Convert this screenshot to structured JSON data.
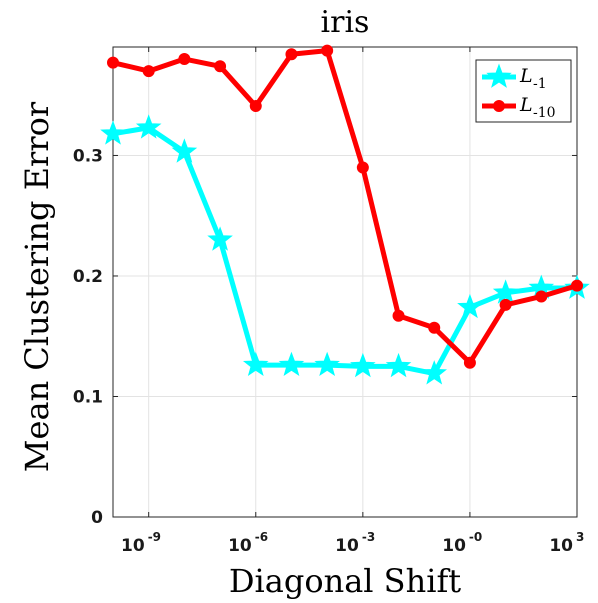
{
  "chart_data": {
    "type": "line",
    "title": "iris",
    "xlabel": "Diagonal Shift",
    "ylabel": "Mean Clustering Error",
    "x_scale": "log",
    "xlim": [
      1e-10,
      1000
    ],
    "ylim": [
      0,
      0.39
    ],
    "x_ticks": [
      {
        "value": 1e-09,
        "base": "10",
        "exp": "-9"
      },
      {
        "value": 1e-06,
        "base": "10",
        "exp": "-6"
      },
      {
        "value": 0.001,
        "base": "10",
        "exp": "-3"
      },
      {
        "value": 1,
        "base": "10",
        "exp": "-0"
      },
      {
        "value": 1000,
        "base": "10",
        "exp": "3"
      }
    ],
    "y_ticks": [
      {
        "value": 0,
        "label": "0"
      },
      {
        "value": 0.1,
        "label": "0.1"
      },
      {
        "value": 0.2,
        "label": "0.2"
      },
      {
        "value": 0.3,
        "label": "0.3"
      }
    ],
    "grid": true,
    "legend_position": "top-right",
    "series": [
      {
        "name": "L",
        "subscript": "-1",
        "color": "#00ffff",
        "marker": "star",
        "x": [
          1e-10,
          1e-09,
          1e-08,
          1e-07,
          1e-06,
          1e-05,
          0.0001,
          0.001,
          0.01,
          0.1,
          1,
          10,
          100,
          1000
        ],
        "values": [
          0.318,
          0.323,
          0.303,
          0.23,
          0.126,
          0.126,
          0.126,
          0.125,
          0.125,
          0.119,
          0.174,
          0.186,
          0.19,
          0.19
        ]
      },
      {
        "name": "L",
        "subscript": "-10",
        "color": "#ff0000",
        "marker": "circle",
        "x": [
          1e-10,
          1e-09,
          1e-08,
          1e-07,
          1e-06,
          1e-05,
          0.0001,
          0.001,
          0.01,
          0.1,
          1,
          10,
          100,
          1000
        ],
        "values": [
          0.377,
          0.37,
          0.38,
          0.374,
          0.341,
          0.384,
          0.387,
          0.29,
          0.167,
          0.157,
          0.128,
          0.176,
          0.183,
          0.192
        ]
      }
    ]
  }
}
